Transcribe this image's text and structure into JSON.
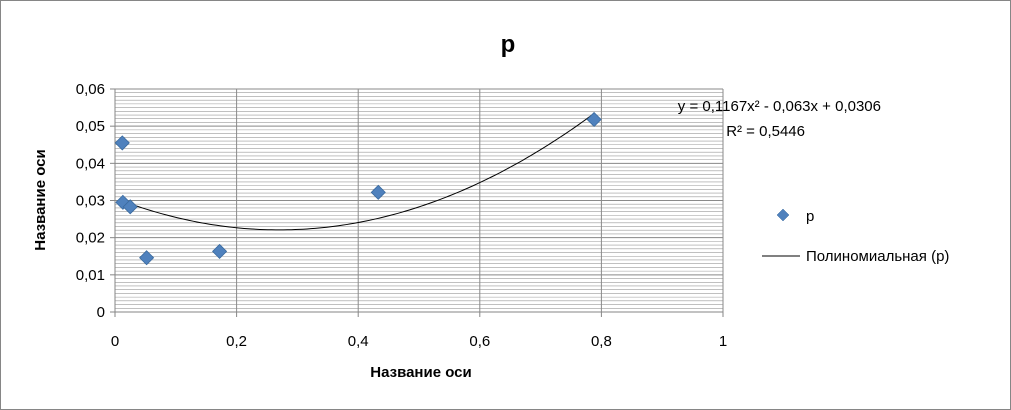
{
  "chart_data": {
    "type": "scatter",
    "title": "p",
    "xlabel": "Название оси",
    "ylabel": "Название оси",
    "xlim": [
      0,
      1
    ],
    "ylim": [
      0,
      0.06
    ],
    "x_ticks": [
      0,
      0.2,
      0.4,
      0.6,
      0.8,
      1
    ],
    "x_tick_labels": [
      "0",
      "0,2",
      "0,4",
      "0,6",
      "0,8",
      "1"
    ],
    "y_ticks": [
      0,
      0.01,
      0.02,
      0.03,
      0.04,
      0.05,
      0.06
    ],
    "y_tick_labels": [
      "0",
      "0,01",
      "0,02",
      "0,03",
      "0,04",
      "0,05",
      "0,06"
    ],
    "grid": {
      "horizontal_minor": true,
      "vertical": true
    },
    "series": [
      {
        "name": "p",
        "marker": "diamond",
        "color": "#4F81BD",
        "points": [
          {
            "x": 0.012,
            "y": 0.0455
          },
          {
            "x": 0.013,
            "y": 0.0295
          },
          {
            "x": 0.025,
            "y": 0.0283
          },
          {
            "x": 0.052,
            "y": 0.0146
          },
          {
            "x": 0.172,
            "y": 0.0163
          },
          {
            "x": 0.433,
            "y": 0.0322
          },
          {
            "x": 0.788,
            "y": 0.0518
          }
        ]
      }
    ],
    "trendline": {
      "name": "Полиномиальная (p)",
      "type": "polynomial",
      "coefficients": [
        0.1167,
        -0.063,
        0.0306
      ],
      "x_range": [
        0.012,
        0.788
      ],
      "color": "#000000",
      "equation": "y = 0,1167x² - 0,063x + 0,0306",
      "r2": "R² = 0,5446"
    },
    "legend": {
      "position": "right",
      "entries": [
        "p",
        "Полиномиальная (p)"
      ]
    }
  }
}
